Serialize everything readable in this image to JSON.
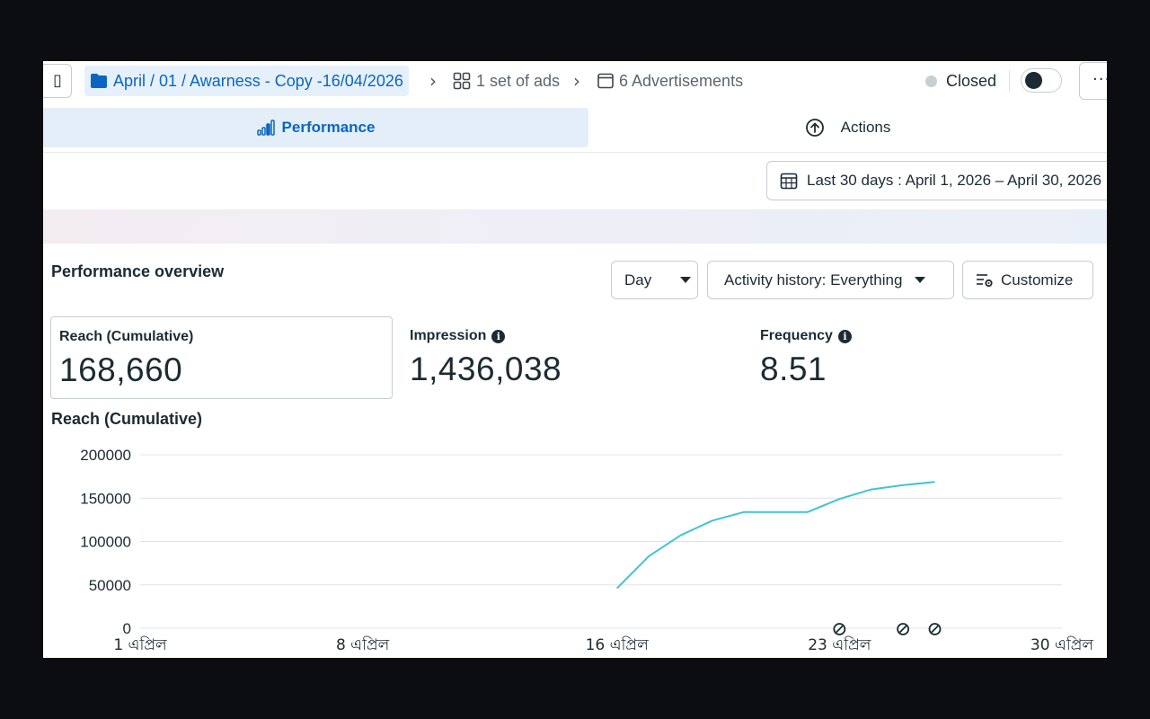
{
  "topbar": {
    "left_button_glyph": "▯",
    "campaign_name": "April / 01 / Awarness - Copy -16/04/2026",
    "ad_sets_label": "1 set of ads",
    "ads_label": "6 Advertisements",
    "status_label": "Closed",
    "more_glyph": "···"
  },
  "tabs": {
    "performance_label": "Performance",
    "actions_label": "Actions"
  },
  "date_range": {
    "label": "Last 30 days : April 1, 2026 – April 30, 2026"
  },
  "overview": {
    "title": "Performance overview",
    "day_select": "Day",
    "activity_select": "Activity history: Everything",
    "customize_label": "Customize"
  },
  "metrics": {
    "reach_label": "Reach (Cumulative)",
    "reach_value": "168,660",
    "impression_label": "Impression",
    "impression_value": "1,436,038",
    "frequency_label": "Frequency",
    "frequency_value": "8.51"
  },
  "chart_title": "Reach (Cumulative)",
  "chart_data": {
    "type": "line",
    "title": "Reach (Cumulative)",
    "xlabel": "",
    "ylabel": "",
    "ylim": [
      0,
      200000
    ],
    "xlim": [
      1,
      30
    ],
    "y_ticks": [
      "0",
      "50000",
      "100000",
      "150000",
      "200000"
    ],
    "x_ticks": [
      {
        "x": 1,
        "label": "1 এপ্রিল"
      },
      {
        "x": 8,
        "label": "8 এপ্রিল"
      },
      {
        "x": 16,
        "label": "16 এপ্রিল"
      },
      {
        "x": 23,
        "label": "23 এপ্রিল"
      },
      {
        "x": 30,
        "label": "30 এপ্রিল"
      }
    ],
    "grid": true,
    "color": "#3ec6d0",
    "series": [
      {
        "x": [
          16,
          17,
          18,
          19,
          20,
          21,
          22,
          23,
          24,
          25,
          26
        ],
        "values": [
          46000,
          83000,
          107000,
          124000,
          134000,
          134000,
          134000,
          149000,
          160000,
          165000,
          168660
        ]
      }
    ],
    "event_markers_x": [
      23,
      25,
      26
    ]
  }
}
